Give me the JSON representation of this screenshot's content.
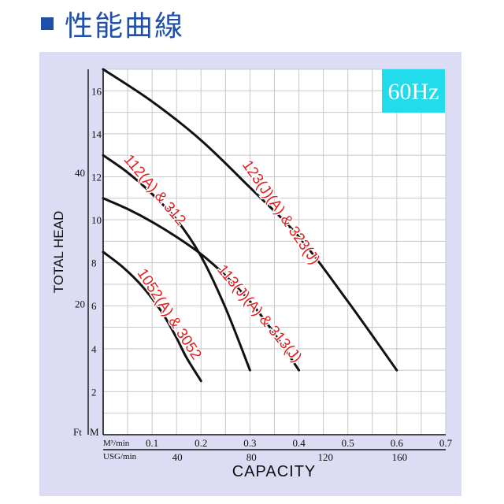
{
  "header": {
    "title": "性能曲線",
    "icon": "square-icon",
    "accent": "#1f4fa8"
  },
  "freq_badge": "60Hz",
  "chart_data": {
    "type": "line",
    "xlabel": "CAPACITY",
    "ylabel": "TOTAL HEAD",
    "x_unit_label": "M³/min",
    "x2_unit_label": "USG/min",
    "y_unit_label": "M",
    "y2_unit_label": "Ft",
    "xlim": [
      0,
      0.7
    ],
    "ylim": [
      0,
      17
    ],
    "x_ticks": [
      "0.1",
      "0.2",
      "0.3",
      "0.4",
      "0.5",
      "0.6",
      "0.7"
    ],
    "y_ticks": [
      "2",
      "4",
      "6",
      "8",
      "10",
      "12",
      "14",
      "16"
    ],
    "x2_ticks": [
      {
        "v": 40,
        "label": "40"
      },
      {
        "v": 80,
        "label": "80"
      },
      {
        "v": 120,
        "label": "120"
      },
      {
        "v": 160,
        "label": "160"
      }
    ],
    "y2_ticks": [
      {
        "v": 20,
        "label": "20"
      },
      {
        "v": 40,
        "label": "40"
      }
    ],
    "grid": true,
    "series": [
      {
        "name": "1052(A) & 3052",
        "x": [
          0,
          0.04,
          0.08,
          0.12,
          0.15,
          0.17,
          0.2
        ],
        "y": [
          8.5,
          7.8,
          6.9,
          5.7,
          4.5,
          3.6,
          2.5
        ]
      },
      {
        "name": "112(A) & 312",
        "x": [
          0,
          0.05,
          0.1,
          0.15,
          0.2,
          0.25,
          0.3
        ],
        "y": [
          13,
          12.2,
          11.2,
          10,
          8.3,
          5.9,
          3
        ]
      },
      {
        "name": "113(J)(A) & 313(J)",
        "x": [
          0,
          0.05,
          0.1,
          0.15,
          0.2,
          0.25,
          0.3,
          0.35,
          0.4
        ],
        "y": [
          11,
          10.5,
          9.9,
          9.2,
          8.4,
          7.4,
          6.2,
          4.7,
          3
        ]
      },
      {
        "name": "123(J)(A) & 323(J)",
        "x": [
          0,
          0.1,
          0.2,
          0.3,
          0.4,
          0.5,
          0.6
        ],
        "y": [
          17,
          15.5,
          13.7,
          11.5,
          9.2,
          6.2,
          3
        ]
      }
    ]
  }
}
